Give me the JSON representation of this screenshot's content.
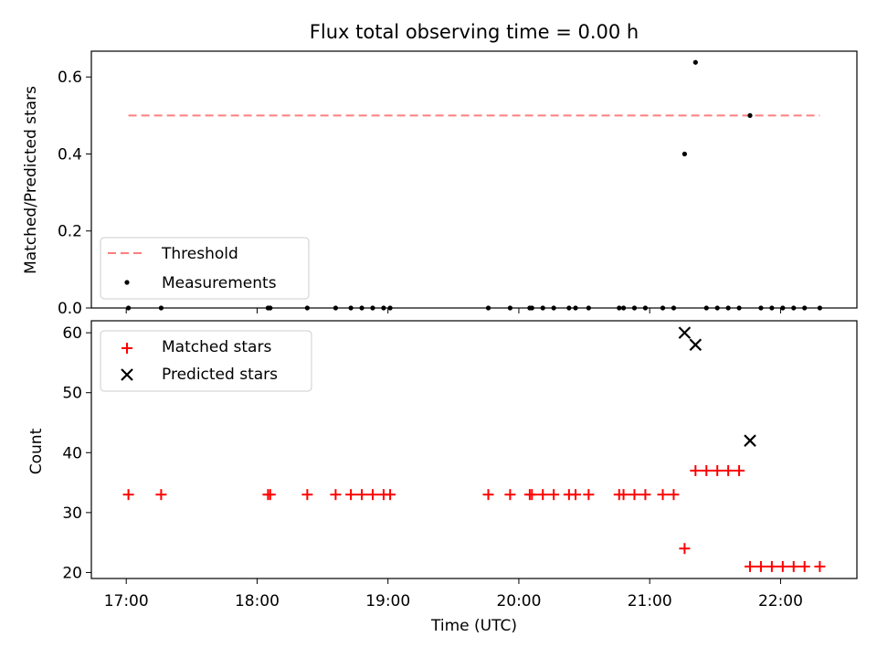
{
  "chart_data": [
    {
      "type": "scatter",
      "title": "Flux total observing time = 0.00 h",
      "xlabel": "",
      "ylabel": "Matched/Predicted stars",
      "xlim": [
        "16:44",
        "22:35"
      ],
      "ylim": [
        0,
        0.667
      ],
      "yticks": [
        0.0,
        0.2,
        0.4,
        0.6
      ],
      "ytick_labels": [
        "0.0",
        "0.2",
        "0.4",
        "0.6"
      ],
      "xticks": [
        "17:00",
        "18:00",
        "19:00",
        "20:00",
        "21:00",
        "22:00"
      ],
      "legend_position": "lower left",
      "series": [
        {
          "name": "Threshold",
          "kind": "dashed-line",
          "color": "#ff7f7f",
          "x": [
            "17:01",
            "22:18"
          ],
          "y": [
            0.5,
            0.5
          ]
        },
        {
          "name": "Measurements",
          "kind": "dot",
          "color": "#000000",
          "x": [
            "17:01",
            "17:16",
            "18:05",
            "18:06",
            "18:23",
            "18:36",
            "18:43",
            "18:48",
            "18:53",
            "18:58",
            "19:01",
            "19:46",
            "19:56",
            "20:05",
            "20:06",
            "20:11",
            "20:16",
            "20:23",
            "20:26",
            "20:32",
            "20:46",
            "20:48",
            "20:53",
            "20:58",
            "21:06",
            "21:11",
            "21:16",
            "21:21",
            "21:26",
            "21:31",
            "21:36",
            "21:41",
            "21:46",
            "21:51",
            "21:56",
            "22:01",
            "22:06",
            "22:11",
            "22:18"
          ],
          "y": [
            0,
            0,
            0,
            0,
            0,
            0,
            0,
            0,
            0,
            0,
            0,
            0,
            0,
            0,
            0,
            0,
            0,
            0,
            0,
            0,
            0,
            0,
            0,
            0,
            0,
            0,
            0.4,
            0.638,
            0,
            0,
            0,
            0,
            0.5,
            0,
            0,
            0,
            0,
            0,
            0
          ]
        }
      ]
    },
    {
      "type": "scatter",
      "title": "",
      "xlabel": "Time (UTC)",
      "ylabel": "Count",
      "xlim": [
        "16:44",
        "22:35"
      ],
      "ylim": [
        19,
        62
      ],
      "yticks": [
        20,
        30,
        40,
        50,
        60
      ],
      "ytick_labels": [
        "20",
        "30",
        "40",
        "50",
        "60"
      ],
      "xticks": [
        "17:00",
        "18:00",
        "19:00",
        "20:00",
        "21:00",
        "22:00"
      ],
      "legend_position": "upper left",
      "series": [
        {
          "name": "Matched stars",
          "kind": "plus",
          "color": "#ff0000",
          "x": [
            "17:01",
            "17:16",
            "18:05",
            "18:06",
            "18:23",
            "18:36",
            "18:43",
            "18:48",
            "18:53",
            "18:58",
            "19:01",
            "19:46",
            "19:56",
            "20:05",
            "20:06",
            "20:11",
            "20:16",
            "20:23",
            "20:26",
            "20:32",
            "20:46",
            "20:48",
            "20:53",
            "20:58",
            "21:06",
            "21:11",
            "21:16",
            "21:21",
            "21:26",
            "21:31",
            "21:36",
            "21:41",
            "21:46",
            "21:51",
            "21:56",
            "22:01",
            "22:06",
            "22:11",
            "22:18"
          ],
          "y": [
            33,
            33,
            33,
            33,
            33,
            33,
            33,
            33,
            33,
            33,
            33,
            33,
            33,
            33,
            33,
            33,
            33,
            33,
            33,
            33,
            33,
            33,
            33,
            33,
            33,
            33,
            24,
            37,
            37,
            37,
            37,
            37,
            21,
            21,
            21,
            21,
            21,
            21,
            21
          ]
        },
        {
          "name": "Predicted stars",
          "kind": "cross",
          "color": "#000000",
          "x": [
            "21:16",
            "21:21",
            "21:46"
          ],
          "y": [
            60,
            58,
            42
          ]
        }
      ]
    }
  ]
}
